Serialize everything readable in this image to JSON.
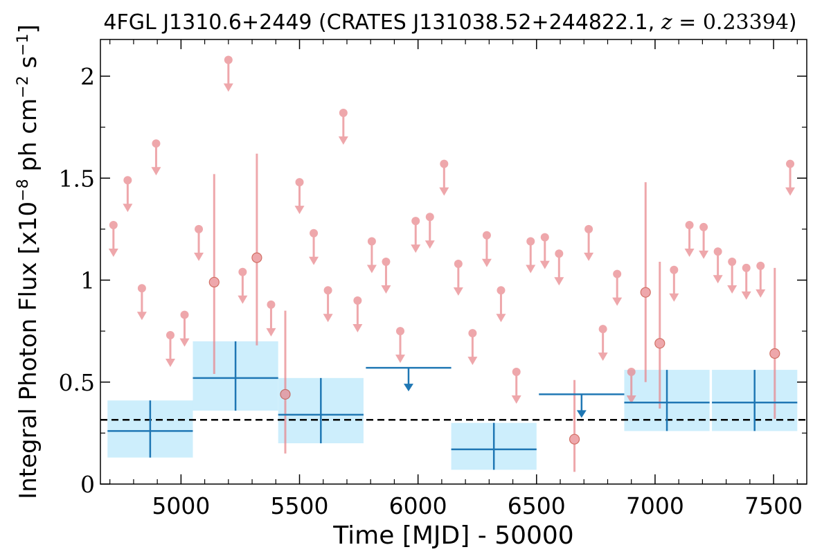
{
  "chart_data": {
    "type": "scatter",
    "title": {
      "source": "4FGL J1310.6+2449 (CRATES J131038.52+244822.1, ",
      "z_symbol": "z",
      "equals": " = ",
      "z_value": "0.23394",
      "close": ")"
    },
    "xlabel": "Time [MJD] - 50000",
    "ylabel": {
      "prefix": "Integral Photon Flux [x10",
      "exp1": "−8",
      "mid": " ph cm",
      "exp2": "−2",
      "mid2": " s",
      "exp3": "−1",
      "suffix": "]"
    },
    "xlim": [
      4660,
      7640
    ],
    "ylim": [
      0,
      2.18
    ],
    "xticks": [
      5000,
      5500,
      6000,
      6500,
      7000,
      7500
    ],
    "xtick_labels": [
      "5000",
      "5500",
      "6000",
      "6500",
      "7000",
      "7500"
    ],
    "yticks": [
      0,
      0.5,
      1,
      1.5,
      2
    ],
    "ytick_labels": [
      "0",
      "0.5",
      "1",
      "1.5",
      "2"
    ],
    "grid": false,
    "colors": {
      "short_bins": "#e8868c",
      "long_bins": "#1f77b4",
      "band_fill": "#cdeefc",
      "average": "#000000"
    },
    "average_flux": 0.315,
    "long_bins": [
      {
        "x": 4870,
        "x0": 4690,
        "x1": 5050,
        "y": 0.26,
        "yerr_lo": 0.13,
        "yerr_hi": 0.41,
        "upper_limit": false
      },
      {
        "x": 5230,
        "x0": 5050,
        "x1": 5410,
        "y": 0.52,
        "yerr_lo": 0.36,
        "yerr_hi": 0.7,
        "upper_limit": false
      },
      {
        "x": 5590,
        "x0": 5410,
        "x1": 5770,
        "y": 0.34,
        "yerr_lo": 0.2,
        "yerr_hi": 0.52,
        "upper_limit": false
      },
      {
        "x": 5960,
        "x0": 5780,
        "x1": 6140,
        "y": 0.57,
        "upper_limit": true
      },
      {
        "x": 6320,
        "x0": 6140,
        "x1": 6500,
        "y": 0.17,
        "yerr_lo": 0.07,
        "yerr_hi": 0.3,
        "upper_limit": false
      },
      {
        "x": 6690,
        "x0": 6510,
        "x1": 6870,
        "y": 0.44,
        "upper_limit": true
      },
      {
        "x": 7050,
        "x0": 6870,
        "x1": 7230,
        "y": 0.4,
        "yerr_lo": 0.26,
        "yerr_hi": 0.56,
        "upper_limit": false
      },
      {
        "x": 7420,
        "x0": 7240,
        "x1": 7600,
        "y": 0.4,
        "yerr_lo": 0.26,
        "yerr_hi": 0.56,
        "upper_limit": false
      }
    ],
    "short_bins": [
      {
        "x": 4715,
        "y": 1.27,
        "upper_limit": true
      },
      {
        "x": 4775,
        "y": 1.49,
        "upper_limit": true
      },
      {
        "x": 4835,
        "y": 0.96,
        "upper_limit": true
      },
      {
        "x": 4895,
        "y": 1.67,
        "upper_limit": true
      },
      {
        "x": 4955,
        "y": 0.73,
        "upper_limit": true
      },
      {
        "x": 5015,
        "y": 0.83,
        "upper_limit": true
      },
      {
        "x": 5075,
        "y": 1.25,
        "upper_limit": true
      },
      {
        "x": 5140,
        "y": 0.99,
        "yerr_lo": 0.54,
        "yerr_hi": 1.52,
        "upper_limit": false
      },
      {
        "x": 5200,
        "y": 2.08,
        "upper_limit": true
      },
      {
        "x": 5260,
        "y": 1.04,
        "upper_limit": true
      },
      {
        "x": 5320,
        "y": 1.11,
        "yerr_lo": 0.68,
        "yerr_hi": 1.62,
        "upper_limit": false
      },
      {
        "x": 5380,
        "y": 0.88,
        "upper_limit": true
      },
      {
        "x": 5440,
        "y": 0.44,
        "yerr_lo": 0.15,
        "yerr_hi": 0.85,
        "upper_limit": false
      },
      {
        "x": 5500,
        "y": 1.48,
        "upper_limit": true
      },
      {
        "x": 5560,
        "y": 1.23,
        "upper_limit": true
      },
      {
        "x": 5620,
        "y": 0.95,
        "upper_limit": true
      },
      {
        "x": 5685,
        "y": 1.82,
        "upper_limit": true
      },
      {
        "x": 5745,
        "y": 0.9,
        "upper_limit": true
      },
      {
        "x": 5805,
        "y": 1.19,
        "upper_limit": true
      },
      {
        "x": 5865,
        "y": 1.09,
        "upper_limit": true
      },
      {
        "x": 5925,
        "y": 0.75,
        "upper_limit": true
      },
      {
        "x": 5990,
        "y": 1.29,
        "upper_limit": true
      },
      {
        "x": 6050,
        "y": 1.31,
        "upper_limit": true
      },
      {
        "x": 6110,
        "y": 1.57,
        "upper_limit": true
      },
      {
        "x": 6170,
        "y": 1.08,
        "upper_limit": true
      },
      {
        "x": 6230,
        "y": 0.74,
        "upper_limit": true
      },
      {
        "x": 6290,
        "y": 1.22,
        "upper_limit": true
      },
      {
        "x": 6350,
        "y": 0.95,
        "upper_limit": true
      },
      {
        "x": 6415,
        "y": 0.55,
        "upper_limit": true
      },
      {
        "x": 6475,
        "y": 1.19,
        "upper_limit": true
      },
      {
        "x": 6535,
        "y": 1.21,
        "upper_limit": true
      },
      {
        "x": 6595,
        "y": 1.13,
        "upper_limit": true
      },
      {
        "x": 6660,
        "y": 0.22,
        "yerr_lo": 0.06,
        "yerr_hi": 0.51,
        "upper_limit": false
      },
      {
        "x": 6720,
        "y": 1.25,
        "upper_limit": true
      },
      {
        "x": 6780,
        "y": 0.76,
        "upper_limit": true
      },
      {
        "x": 6840,
        "y": 1.03,
        "upper_limit": true
      },
      {
        "x": 6900,
        "y": 0.55,
        "upper_limit": true
      },
      {
        "x": 6960,
        "y": 0.94,
        "yerr_lo": 0.5,
        "yerr_hi": 1.48,
        "upper_limit": false
      },
      {
        "x": 7020,
        "y": 0.69,
        "yerr_lo": 0.37,
        "yerr_hi": 1.09,
        "upper_limit": false
      },
      {
        "x": 7080,
        "y": 1.05,
        "upper_limit": true
      },
      {
        "x": 7145,
        "y": 1.27,
        "upper_limit": true
      },
      {
        "x": 7205,
        "y": 1.26,
        "upper_limit": true
      },
      {
        "x": 7265,
        "y": 1.14,
        "upper_limit": true
      },
      {
        "x": 7325,
        "y": 1.09,
        "upper_limit": true
      },
      {
        "x": 7385,
        "y": 1.06,
        "upper_limit": true
      },
      {
        "x": 7445,
        "y": 1.07,
        "upper_limit": true
      },
      {
        "x": 7505,
        "y": 0.64,
        "yerr_lo": 0.32,
        "yerr_hi": 1.06,
        "upper_limit": false
      },
      {
        "x": 7570,
        "y": 1.57,
        "upper_limit": true
      }
    ]
  }
}
